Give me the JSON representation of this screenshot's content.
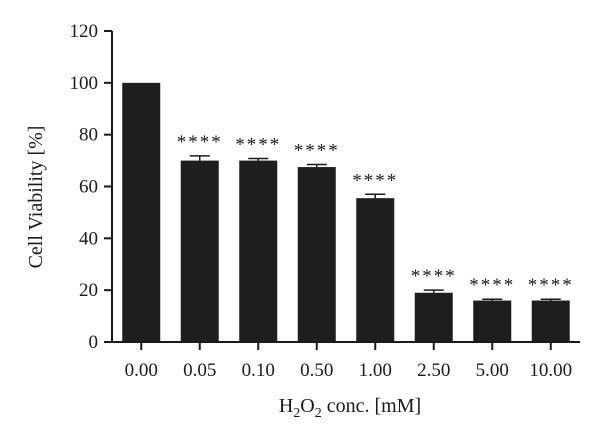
{
  "chart_data": {
    "type": "bar",
    "categories": [
      "0.00",
      "0.05",
      "0.10",
      "0.50",
      "1.00",
      "2.50",
      "5.00",
      "10.00"
    ],
    "values": [
      100,
      70,
      70,
      67.5,
      55.5,
      19,
      16,
      16
    ],
    "errors": [
      0,
      1.8,
      0.8,
      1.0,
      1.5,
      1.0,
      0.5,
      0.5
    ],
    "annotations": [
      "",
      "****",
      "****",
      "****",
      "****",
      "****",
      "****",
      "****"
    ],
    "ylabel": "Cell Viability [%]",
    "xlabel": {
      "prefix": "H",
      "sub1": "2",
      "mid": "O",
      "sub2": "2",
      "suffix": " conc. [mM]"
    },
    "ylim": [
      0,
      120
    ],
    "yticks": [
      "0",
      "20",
      "40",
      "60",
      "80",
      "100",
      "120"
    ],
    "grid": false,
    "bar_color": "#1e1e1e"
  }
}
